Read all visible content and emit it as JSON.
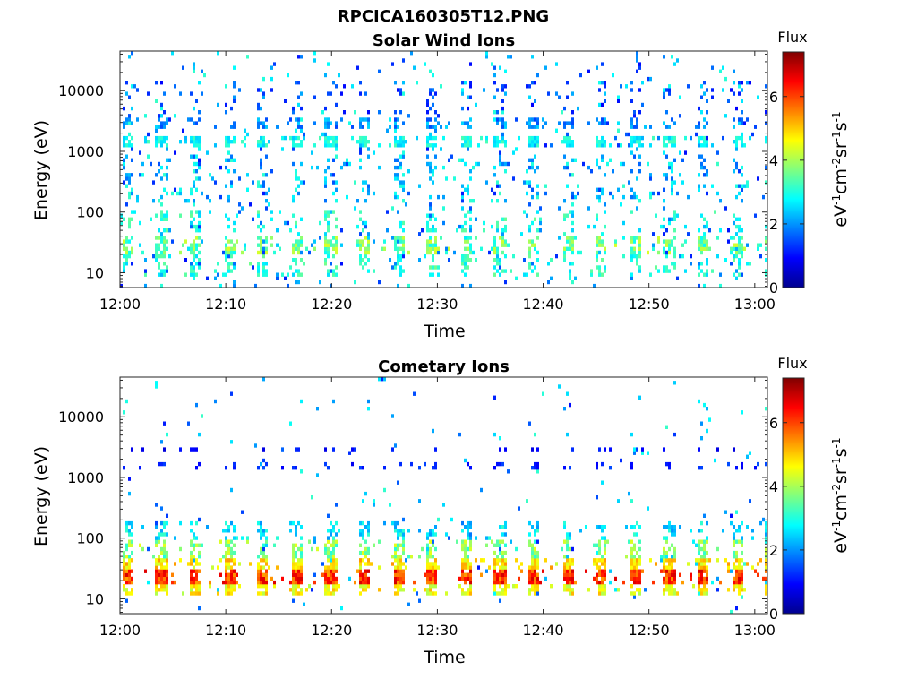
{
  "figure": {
    "title": "RPCICA160305T12.PNG"
  },
  "chart_data": [
    {
      "type": "heatmap",
      "title": "Solar Wind Ions",
      "xlabel": "Time",
      "ylabel": "Energy (eV)",
      "x_tick_labels": [
        "12:00",
        "12:10",
        "12:20",
        "12:30",
        "12:40",
        "12:50",
        "13:00"
      ],
      "x_tick_minutes": [
        0,
        10,
        20,
        30,
        40,
        50,
        60
      ],
      "xlim_minutes": [
        0,
        61.2
      ],
      "y_scale": "log",
      "y_tick_labels": [
        "10",
        "100",
        "1000",
        "10000"
      ],
      "y_tick_values": [
        10,
        100,
        1000,
        10000
      ],
      "ylim": [
        5.7,
        45000
      ],
      "colorbar": {
        "title": "Flux",
        "label": "eV-1cm-2sr-1s-1",
        "ticks": [
          0,
          2,
          4,
          6
        ],
        "range": [
          0,
          7.4
        ]
      },
      "pattern": {
        "sweep_period_minutes": 3.2,
        "sweep_start_minutes": 0.2,
        "bands": [
          {
            "energy_low": 1200,
            "energy_high": 1900,
            "flux_low": 2.4,
            "flux_high": 3.3,
            "density": 0.75
          },
          {
            "energy_low": 2500,
            "energy_high": 3400,
            "flux_low": 1.4,
            "flux_high": 2.5,
            "density": 0.55
          },
          {
            "energy_low": 20,
            "energy_high": 38,
            "flux_low": 2.8,
            "flux_high": 4.4,
            "density": 0.65
          },
          {
            "energy_low": 9,
            "energy_high": 19,
            "flux_low": 2.5,
            "flux_high": 3.6,
            "density": 0.35
          },
          {
            "energy_low": 50,
            "energy_high": 110,
            "flux_low": 2.4,
            "flux_high": 3.6,
            "density": 0.25
          },
          {
            "energy_low": 150,
            "energy_high": 900,
            "flux_low": 1.5,
            "flux_high": 3.2,
            "density": 0.18
          },
          {
            "energy_low": 4000,
            "energy_high": 15000,
            "flux_low": 0.9,
            "flux_high": 1.9,
            "density": 0.12
          }
        ],
        "background_density": 0.05
      }
    },
    {
      "type": "heatmap",
      "title": "Cometary Ions",
      "xlabel": "Time",
      "ylabel": "Energy (eV)",
      "x_tick_labels": [
        "12:00",
        "12:10",
        "12:20",
        "12:30",
        "12:40",
        "12:50",
        "13:00"
      ],
      "x_tick_minutes": [
        0,
        10,
        20,
        30,
        40,
        50,
        60
      ],
      "xlim_minutes": [
        0,
        61.2
      ],
      "y_scale": "log",
      "y_tick_labels": [
        "10",
        "100",
        "1000",
        "10000"
      ],
      "y_tick_values": [
        10,
        100,
        1000,
        10000
      ],
      "ylim": [
        5.7,
        45000
      ],
      "colorbar": {
        "title": "Flux",
        "label": "eV-1cm-2sr-1s-1",
        "ticks": [
          0,
          2,
          4,
          6
        ],
        "range": [
          0,
          7.4
        ]
      },
      "pattern": {
        "sweep_period_minutes": 3.2,
        "sweep_start_minutes": 0.2,
        "bands": [
          {
            "energy_low": 18,
            "energy_high": 30,
            "flux_low": 5.3,
            "flux_high": 6.8,
            "density": 0.9
          },
          {
            "energy_low": 30,
            "energy_high": 45,
            "flux_low": 4.2,
            "flux_high": 5.4,
            "density": 0.8
          },
          {
            "energy_low": 12,
            "energy_high": 18,
            "flux_low": 4.0,
            "flux_high": 5.2,
            "density": 0.7
          },
          {
            "energy_low": 45,
            "energy_high": 90,
            "flux_low": 3.0,
            "flux_high": 4.5,
            "density": 0.55
          },
          {
            "energy_low": 90,
            "energy_high": 180,
            "flux_low": 2.0,
            "flux_high": 3.2,
            "density": 0.4
          },
          {
            "energy_low": 1400,
            "energy_high": 1800,
            "flux_low": 0.8,
            "flux_high": 1.5,
            "density": 0.3
          },
          {
            "energy_low": 2600,
            "energy_high": 3300,
            "flux_low": 0.6,
            "flux_high": 1.3,
            "density": 0.3
          }
        ],
        "background_density": 0.015
      }
    }
  ]
}
